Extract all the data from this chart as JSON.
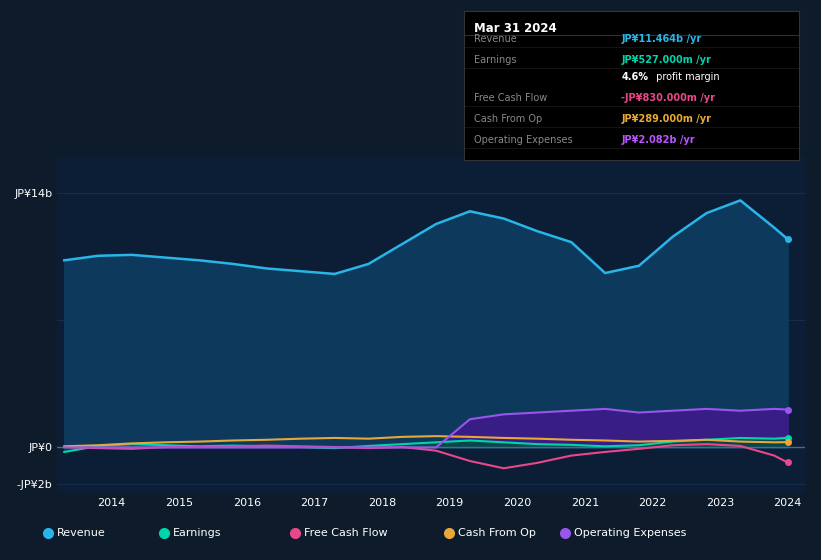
{
  "bg_color": "#0d1b2a",
  "plot_bg_color": "#0c1e35",
  "years": [
    2013.3,
    2013.8,
    2014.3,
    2014.8,
    2015.3,
    2015.8,
    2016.3,
    2016.8,
    2017.3,
    2017.8,
    2018.3,
    2018.8,
    2019.3,
    2019.8,
    2020.3,
    2020.8,
    2021.3,
    2021.8,
    2022.3,
    2022.8,
    2023.3,
    2023.8,
    2024.0
  ],
  "revenue": [
    10.3,
    10.55,
    10.6,
    10.45,
    10.3,
    10.1,
    9.85,
    9.7,
    9.55,
    10.1,
    11.2,
    12.3,
    13.0,
    12.6,
    11.9,
    11.3,
    9.6,
    10.0,
    11.6,
    12.9,
    13.6,
    12.1,
    11.464
  ],
  "earnings": [
    -0.25,
    0.08,
    0.18,
    0.12,
    0.06,
    0.1,
    0.06,
    0.02,
    -0.04,
    0.08,
    0.18,
    0.28,
    0.38,
    0.28,
    0.18,
    0.14,
    0.06,
    0.12,
    0.32,
    0.42,
    0.52,
    0.48,
    0.527
  ],
  "free_cash_flow": [
    0.02,
    -0.04,
    -0.08,
    0.02,
    0.02,
    0.06,
    0.1,
    0.06,
    0.02,
    -0.04,
    0.02,
    -0.18,
    -0.75,
    -1.15,
    -0.85,
    -0.45,
    -0.25,
    -0.08,
    0.12,
    0.18,
    0.08,
    -0.45,
    -0.83
  ],
  "cash_from_op": [
    0.06,
    0.12,
    0.22,
    0.28,
    0.32,
    0.38,
    0.42,
    0.48,
    0.52,
    0.48,
    0.58,
    0.62,
    0.58,
    0.52,
    0.48,
    0.42,
    0.38,
    0.32,
    0.36,
    0.42,
    0.32,
    0.28,
    0.289
  ],
  "op_expenses": [
    0.0,
    0.0,
    0.0,
    0.0,
    0.0,
    0.0,
    0.0,
    0.0,
    0.0,
    0.0,
    0.0,
    0.0,
    1.55,
    1.82,
    1.92,
    2.02,
    2.12,
    1.92,
    2.02,
    2.12,
    2.02,
    2.12,
    2.082
  ],
  "revenue_color": "#29b5e8",
  "earnings_color": "#00d4aa",
  "fcf_color": "#e8488a",
  "cashop_color": "#e8a838",
  "opex_color": "#9955ee",
  "revenue_fill": "#0d3a5c",
  "earnings_fill": "#004d44",
  "opex_fill": "#3d1a8a",
  "grid_color": "#1a3050",
  "zero_line_color": "#4a6a88",
  "ylim_min": -2.5,
  "ylim_max": 16.0,
  "ytick_vals": [
    -2,
    0,
    14
  ],
  "ytick_labels": [
    "-JP¥2b",
    "JP¥0",
    "JP¥14b"
  ],
  "xtick_vals": [
    2014,
    2015,
    2016,
    2017,
    2018,
    2019,
    2020,
    2021,
    2022,
    2023,
    2024
  ],
  "tooltip_title": "Mar 31 2024",
  "tooltip_rows": [
    {
      "label": "Revenue",
      "value": "JP¥11.464b /yr",
      "color": "#29b5e8"
    },
    {
      "label": "Earnings",
      "value": "JP¥527.000m /yr",
      "color": "#00d4aa"
    },
    {
      "label": "",
      "value": "4.6% profit margin",
      "color": null
    },
    {
      "label": "Free Cash Flow",
      "value": "-JP¥830.000m /yr",
      "color": "#e8488a"
    },
    {
      "label": "Cash From Op",
      "value": "JP¥289.000m /yr",
      "color": "#e8a838"
    },
    {
      "label": "Operating Expenses",
      "value": "JP¥2.082b /yr",
      "color": "#bb55ff"
    }
  ],
  "legend_items": [
    {
      "label": "Revenue",
      "color": "#29b5e8"
    },
    {
      "label": "Earnings",
      "color": "#00d4aa"
    },
    {
      "label": "Free Cash Flow",
      "color": "#e8488a"
    },
    {
      "label": "Cash From Op",
      "color": "#e8a838"
    },
    {
      "label": "Operating Expenses",
      "color": "#9955ee"
    }
  ]
}
